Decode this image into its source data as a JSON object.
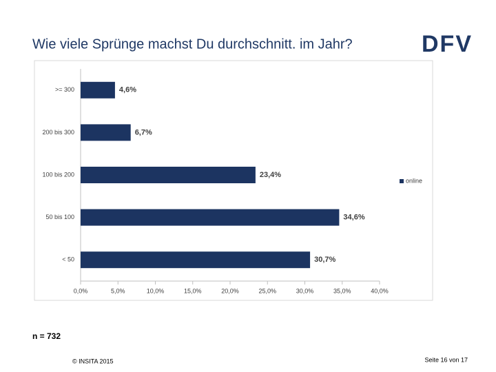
{
  "header": {
    "title": "Wie viele Sprünge machst Du durchschnitt. im Jahr?",
    "logo": "DFV"
  },
  "chart_data": {
    "type": "bar",
    "orientation": "horizontal",
    "categories": [
      ">= 300",
      "200 bis 300",
      "100 bis 200",
      "50 bis 100",
      "< 50"
    ],
    "series": [
      {
        "name": "online",
        "color": "#1c3461",
        "values": [
          4.6,
          6.7,
          23.4,
          34.6,
          30.7
        ],
        "value_labels": [
          "4,6%",
          "6,7%",
          "23,4%",
          "34,6%",
          "30,7%"
        ]
      }
    ],
    "xlim": [
      0,
      40
    ],
    "xticks": [
      {
        "value": 0,
        "label": "0,0%"
      },
      {
        "value": 5,
        "label": "5,0%"
      },
      {
        "value": 10,
        "label": "10,0%"
      },
      {
        "value": 15,
        "label": "15,0%"
      },
      {
        "value": 20,
        "label": "20,0%"
      },
      {
        "value": 25,
        "label": "25,0%"
      },
      {
        "value": 30,
        "label": "30,0%"
      },
      {
        "value": 35,
        "label": "35,0%"
      },
      {
        "value": 40,
        "label": "40,0%"
      }
    ],
    "legend": "right"
  },
  "note": "n = 732",
  "footer": {
    "copyright": "© INSITA 2015",
    "page": "Seite 16 von 17"
  }
}
